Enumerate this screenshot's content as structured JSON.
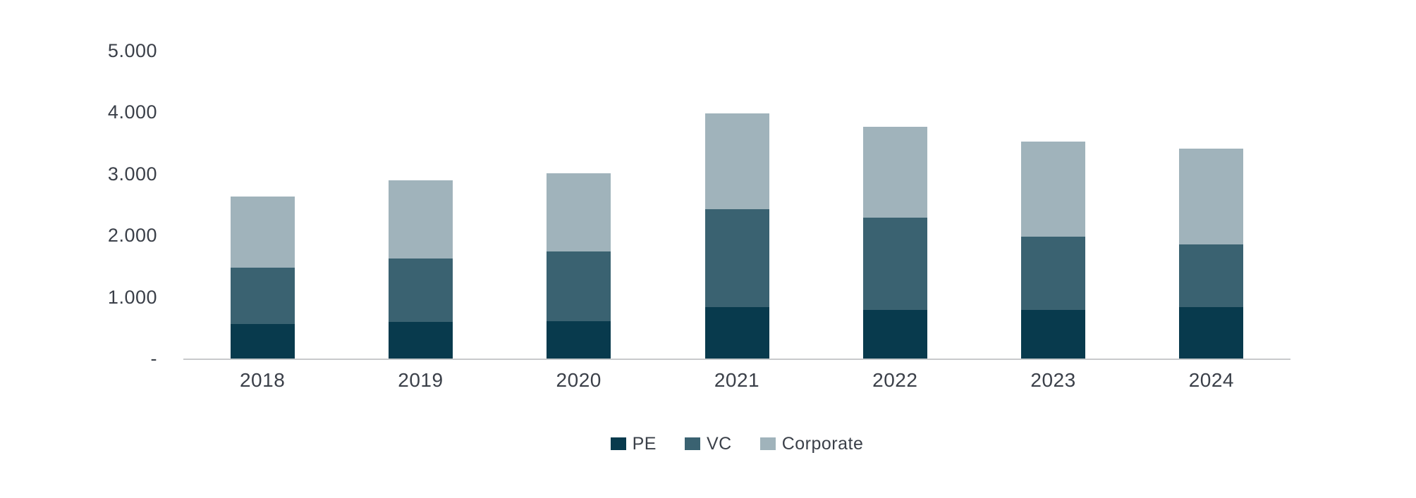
{
  "chart_data": {
    "type": "bar",
    "stacked": true,
    "title": "",
    "xlabel": "",
    "ylabel": "",
    "grid": false,
    "legend_position": "bottom-center",
    "categories": [
      "2018",
      "2019",
      "2020",
      "2021",
      "2022",
      "2023",
      "2024"
    ],
    "series": [
      {
        "name": "PE",
        "color": "#083A4D",
        "values": [
          560,
          600,
          610,
          830,
          790,
          795,
          840
        ]
      },
      {
        "name": "VC",
        "color": "#3A6271",
        "values": [
          920,
          1030,
          1130,
          1590,
          1500,
          1180,
          1010
        ]
      },
      {
        "name": "Corporate",
        "color": "#A0B3BB",
        "values": [
          1150,
          1260,
          1270,
          1560,
          1470,
          1545,
          1560
        ]
      }
    ],
    "stack_totals": [
      2630,
      2890,
      3010,
      3980,
      3760,
      3520,
      3410
    ],
    "ylim": [
      0,
      5000
    ],
    "ytick_values": [
      0,
      1000,
      2000,
      3000,
      4000,
      5000
    ],
    "ytick_labels": [
      "-",
      "1.000",
      "2.000",
      "3.000",
      "4.000",
      "5.000"
    ]
  },
  "colors": {
    "background": "#FFFFFF",
    "axis_line": "#C8CACC",
    "label_text": "#3B4049"
  }
}
